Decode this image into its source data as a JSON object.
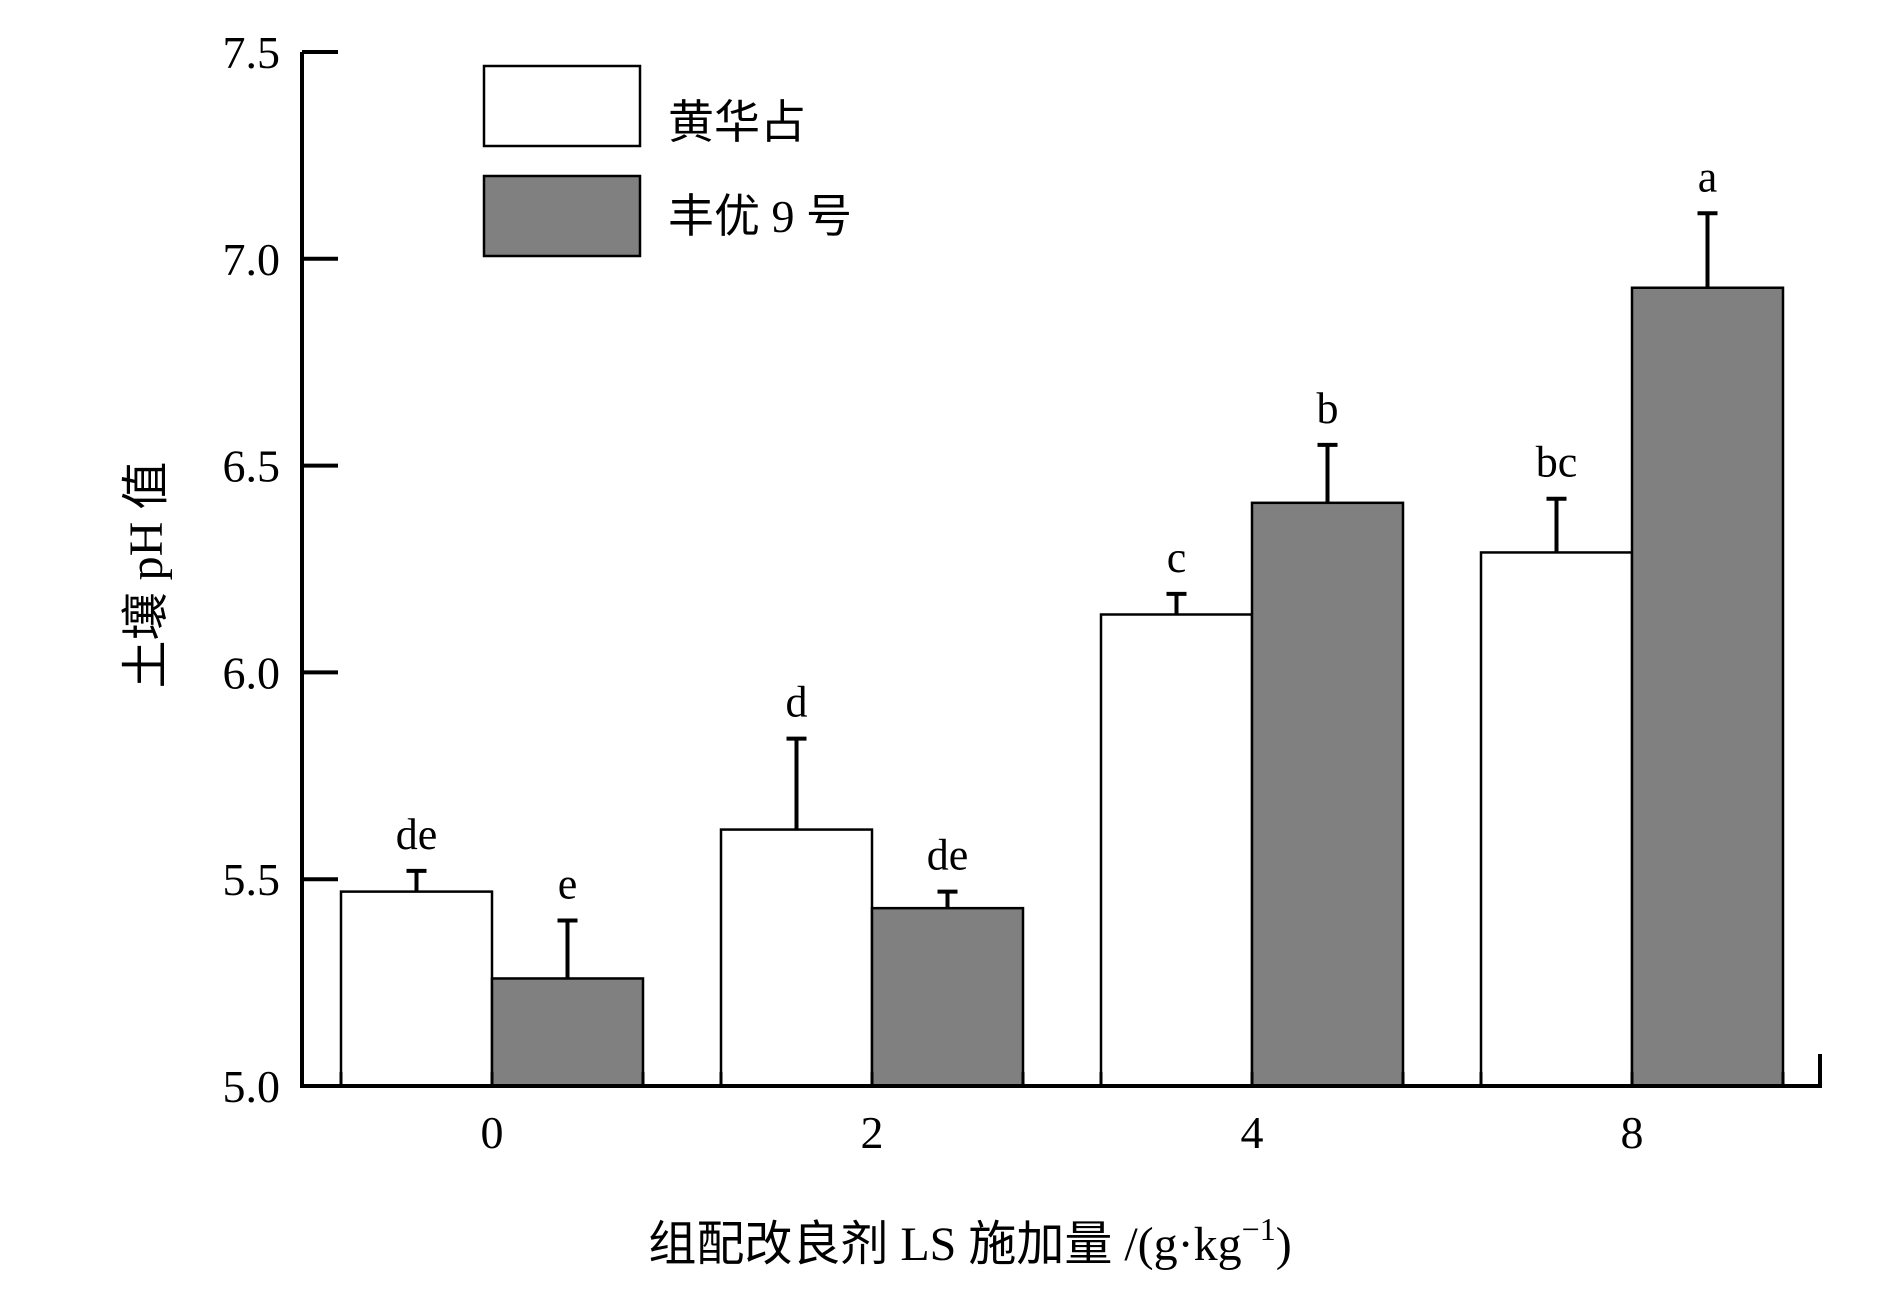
{
  "chart_data": {
    "type": "bar",
    "title": "",
    "xlabel_main": "组配改良剂 LS 施加量 /(g·kg",
    "xlabel_sup": "−1",
    "xlabel_end": ")",
    "ylabel": "土壤 pH 值",
    "categories": [
      "0",
      "2",
      "4",
      "8"
    ],
    "ylim": [
      5.0,
      7.5
    ],
    "yticks": [
      "5.0",
      "5.5",
      "6.0",
      "6.5",
      "7.0",
      "7.5"
    ],
    "legend_position": "top-left",
    "grid": false,
    "series": [
      {
        "name": "黄华占",
        "color": "#ffffff",
        "values": [
          5.47,
          5.62,
          6.14,
          6.29
        ],
        "errors": [
          0.05,
          0.22,
          0.05,
          0.13
        ],
        "labels": [
          "de",
          "d",
          "c",
          "bc"
        ]
      },
      {
        "name": "丰优 9 号",
        "color": "#808080",
        "values": [
          5.26,
          5.43,
          6.41,
          6.93
        ],
        "errors": [
          0.14,
          0.04,
          0.14,
          0.18
        ],
        "labels": [
          "e",
          "de",
          "b",
          "a"
        ]
      }
    ]
  }
}
